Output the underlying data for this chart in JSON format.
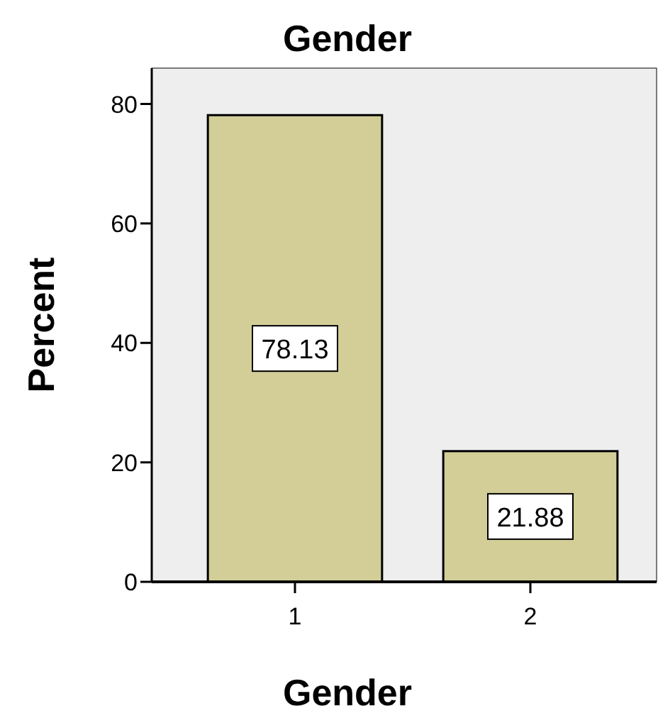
{
  "chart_data": {
    "type": "bar",
    "title": "Gender",
    "xlabel": "Gender",
    "ylabel": "Percent",
    "categories": [
      "1",
      "2"
    ],
    "values": [
      78.13,
      21.88
    ],
    "color": "#d3ce97",
    "ylim": [
      0,
      86
    ],
    "yticks": [
      0,
      20,
      40,
      60,
      80
    ],
    "data_labels": true,
    "grid": false
  }
}
